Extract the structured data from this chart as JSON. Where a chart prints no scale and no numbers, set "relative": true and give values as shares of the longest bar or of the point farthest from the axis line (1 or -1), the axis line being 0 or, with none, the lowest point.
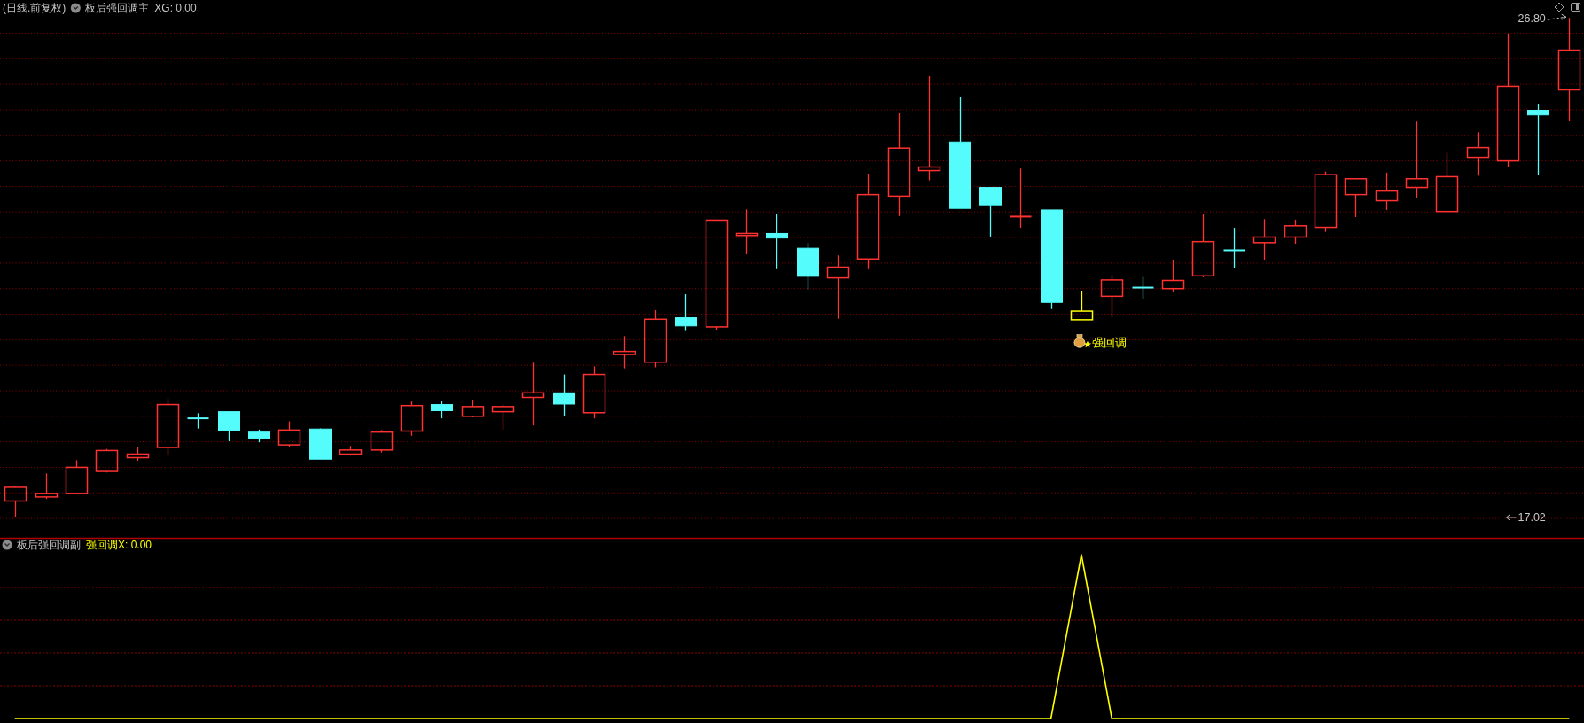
{
  "chart_data": [
    {
      "type": "candlestick",
      "title": "(日线.前复权)",
      "subtitle": "板后强回调主",
      "categories": [
        null,
        null,
        null,
        null,
        null,
        null,
        null,
        null,
        null,
        null,
        null,
        null,
        null,
        null,
        null,
        null,
        null,
        null,
        null,
        null,
        null,
        null,
        null,
        null,
        null,
        null,
        null,
        null,
        null,
        null,
        null,
        null,
        null,
        null,
        null,
        null,
        null,
        null,
        null,
        null,
        null,
        null,
        null,
        null,
        null,
        null,
        null,
        null,
        null,
        null,
        null,
        null
      ],
      "ohlc": [
        [
          17.34,
          17.63,
          17.02,
          17.61
        ],
        [
          17.42,
          17.88,
          17.38,
          17.49
        ],
        [
          17.49,
          18.14,
          17.49,
          18.0
        ],
        [
          17.92,
          18.36,
          17.9,
          18.33
        ],
        [
          18.19,
          18.4,
          18.13,
          18.26
        ],
        [
          18.39,
          19.34,
          18.24,
          19.23
        ],
        [
          18.96,
          19.06,
          18.76,
          18.96
        ],
        [
          19.09,
          19.09,
          18.51,
          18.72
        ],
        [
          18.69,
          18.74,
          18.49,
          18.57
        ],
        [
          18.44,
          18.9,
          18.4,
          18.73
        ],
        [
          18.75,
          18.76,
          18.16,
          18.16
        ],
        [
          18.26,
          18.42,
          18.23,
          18.34
        ],
        [
          18.34,
          18.73,
          18.29,
          18.69
        ],
        [
          18.71,
          19.29,
          18.62,
          19.21
        ],
        [
          19.23,
          19.29,
          18.96,
          19.11
        ],
        [
          19.0,
          19.32,
          18.98,
          19.19
        ],
        [
          19.09,
          19.23,
          18.74,
          19.19
        ],
        [
          19.37,
          20.05,
          18.82,
          19.46
        ],
        [
          19.46,
          19.82,
          19.0,
          19.24
        ],
        [
          19.07,
          19.98,
          18.96,
          19.82
        ],
        [
          20.21,
          20.57,
          19.94,
          20.27
        ],
        [
          20.06,
          21.08,
          19.96,
          20.9
        ],
        [
          20.93,
          21.39,
          20.67,
          20.77
        ],
        [
          20.75,
          22.84,
          20.68,
          22.84
        ],
        [
          22.54,
          23.05,
          22.17,
          22.58
        ],
        [
          22.58,
          22.96,
          21.88,
          22.49
        ],
        [
          22.29,
          22.4,
          21.48,
          21.74
        ],
        [
          21.71,
          22.15,
          20.91,
          21.92
        ],
        [
          22.08,
          23.75,
          21.88,
          23.34
        ],
        [
          23.31,
          24.93,
          22.92,
          24.25
        ],
        [
          23.81,
          25.66,
          23.62,
          23.88
        ],
        [
          24.37,
          25.26,
          23.07,
          23.07
        ],
        [
          23.48,
          23.48,
          22.52,
          23.14
        ],
        [
          22.91,
          23.85,
          22.69,
          22.91
        ],
        [
          23.04,
          23.04,
          21.1,
          21.23
        ],
        [
          20.89,
          21.46,
          20.89,
          21.06
        ],
        [
          21.35,
          21.77,
          20.94,
          21.67
        ],
        [
          21.52,
          21.73,
          21.3,
          21.52
        ],
        [
          21.5,
          22.06,
          21.44,
          21.66
        ],
        [
          21.75,
          22.96,
          21.72,
          22.42
        ],
        [
          22.25,
          22.69,
          21.9,
          22.25
        ],
        [
          22.4,
          22.86,
          22.05,
          22.51
        ],
        [
          22.51,
          22.85,
          22.38,
          22.73
        ],
        [
          22.7,
          23.79,
          22.61,
          23.73
        ],
        [
          23.34,
          23.65,
          22.9,
          23.65
        ],
        [
          23.22,
          23.77,
          23.04,
          23.41
        ],
        [
          23.48,
          24.77,
          23.28,
          23.65
        ],
        [
          23.01,
          24.16,
          23.01,
          23.69
        ],
        [
          24.07,
          24.56,
          23.71,
          24.26
        ],
        [
          24.0,
          26.49,
          23.87,
          25.46
        ],
        [
          24.99,
          25.12,
          23.73,
          24.9
        ],
        [
          25.39,
          26.8,
          24.78,
          26.17
        ]
      ],
      "colors": [
        "#ff3232",
        "#ff3232",
        "#ff3232",
        "#ff3232",
        "#ff3232",
        "#ff3232",
        "#54fcfc",
        "#54fcfc",
        "#54fcfc",
        "#ff3232",
        "#54fcfc",
        "#ff3232",
        "#ff3232",
        "#ff3232",
        "#54fcfc",
        "#ff3232",
        "#ff3232",
        "#ff3232",
        "#54fcfc",
        "#ff3232",
        "#ff3232",
        "#ff3232",
        "#54fcfc",
        "#ff3232",
        "#ff3232",
        "#54fcfc",
        "#54fcfc",
        "#ff3232",
        "#ff3232",
        "#ff3232",
        "#ff3232",
        "#54fcfc",
        "#54fcfc",
        "#ff3232",
        "#54fcfc",
        "#ffff00",
        "#ff3232",
        "#54fcfc",
        "#ff3232",
        "#ff3232",
        "#54fcfc",
        "#ff3232",
        "#ff3232",
        "#ff3232",
        "#ff3232",
        "#ff3232",
        "#ff3232",
        "#ff3232",
        "#ff3232",
        "#ff3232",
        "#54fcfc",
        "#ff3232"
      ],
      "ylim": [
        16.62,
        26.8
      ],
      "yticks": [
        {
          "value": 17.02,
          "label": "17.02"
        },
        {
          "value": 26.8,
          "label": "26.80"
        }
      ],
      "ref_lines": [
        {
          "axis": "y",
          "value": 17.0,
          "color": "#8a0000",
          "line_style": "dotted"
        },
        {
          "axis": "y",
          "value": 17.5,
          "color": "#8a0000",
          "line_style": "dotted"
        },
        {
          "axis": "y",
          "value": 18.0,
          "color": "#8a0000",
          "line_style": "dotted"
        },
        {
          "axis": "y",
          "value": 18.5,
          "color": "#8a0000",
          "line_style": "dotted"
        },
        {
          "axis": "y",
          "value": 19.0,
          "color": "#8a0000",
          "line_style": "dotted"
        },
        {
          "axis": "y",
          "value": 19.5,
          "color": "#8a0000",
          "line_style": "dotted"
        },
        {
          "axis": "y",
          "value": 20.0,
          "color": "#8a0000",
          "line_style": "dotted"
        },
        {
          "axis": "y",
          "value": 20.5,
          "color": "#8a0000",
          "line_style": "dotted"
        },
        {
          "axis": "y",
          "value": 21.0,
          "color": "#8a0000",
          "line_style": "dotted"
        },
        {
          "axis": "y",
          "value": 21.5,
          "color": "#8a0000",
          "line_style": "dotted"
        },
        {
          "axis": "y",
          "value": 22.0,
          "color": "#8a0000",
          "line_style": "dotted"
        },
        {
          "axis": "y",
          "value": 22.5,
          "color": "#8a0000",
          "line_style": "dotted"
        },
        {
          "axis": "y",
          "value": 23.0,
          "color": "#8a0000",
          "line_style": "dotted"
        },
        {
          "axis": "y",
          "value": 23.5,
          "color": "#8a0000",
          "line_style": "dotted"
        },
        {
          "axis": "y",
          "value": 24.0,
          "color": "#8a0000",
          "line_style": "dotted"
        },
        {
          "axis": "y",
          "value": 24.5,
          "color": "#8a0000",
          "line_style": "dotted"
        },
        {
          "axis": "y",
          "value": 25.0,
          "color": "#8a0000",
          "line_style": "dotted"
        },
        {
          "axis": "y",
          "value": 25.5,
          "color": "#8a0000",
          "line_style": "dotted"
        },
        {
          "axis": "y",
          "value": 26.0,
          "color": "#8a0000",
          "line_style": "dotted"
        },
        {
          "axis": "y",
          "value": 26.5,
          "color": "#8a0000",
          "line_style": "dotted"
        }
      ],
      "annotations": [
        "XG: 0.00",
        {
          "text": "强回调",
          "y": 20.46
        }
      ]
    },
    {
      "type": "line",
      "subtitle": "板后强回调副",
      "categories": [
        null,
        null,
        null,
        null,
        null,
        null,
        null,
        null,
        null,
        null,
        null,
        null,
        null,
        null,
        null,
        null,
        null,
        null,
        null,
        null,
        null,
        null,
        null,
        null,
        null,
        null,
        null,
        null,
        null,
        null,
        null,
        null,
        null,
        null,
        null,
        null,
        null,
        null,
        null,
        null,
        null,
        null,
        null,
        null,
        null,
        null,
        null,
        null,
        null,
        null,
        null,
        null
      ],
      "relative": true,
      "series": [
        {
          "color": "#ffff00",
          "values": [
            0,
            0,
            0,
            0,
            0,
            0,
            0,
            0,
            0,
            0,
            0,
            0,
            0,
            0,
            0,
            0,
            0,
            0,
            0,
            0,
            0,
            0,
            0,
            0,
            0,
            0,
            0,
            0,
            0,
            0,
            0,
            0,
            0,
            0,
            0,
            1,
            0,
            0,
            0,
            0,
            0,
            0,
            0,
            0,
            0,
            0,
            0,
            0,
            0,
            0,
            0,
            0
          ]
        }
      ],
      "ref_lines": [
        {
          "axis": "y",
          "value": 0.2,
          "color": "#8a0000",
          "line_style": "dashed"
        },
        {
          "axis": "y",
          "value": 0.4,
          "color": "#8a0000",
          "line_style": "dashed"
        },
        {
          "axis": "y",
          "value": 0.6,
          "color": "#8a0000",
          "line_style": "dashed"
        },
        {
          "axis": "y",
          "value": 0.8,
          "color": "#8a0000",
          "line_style": "dashed"
        }
      ],
      "annotations": [
        "强回调X: 0.00"
      ]
    }
  ]
}
